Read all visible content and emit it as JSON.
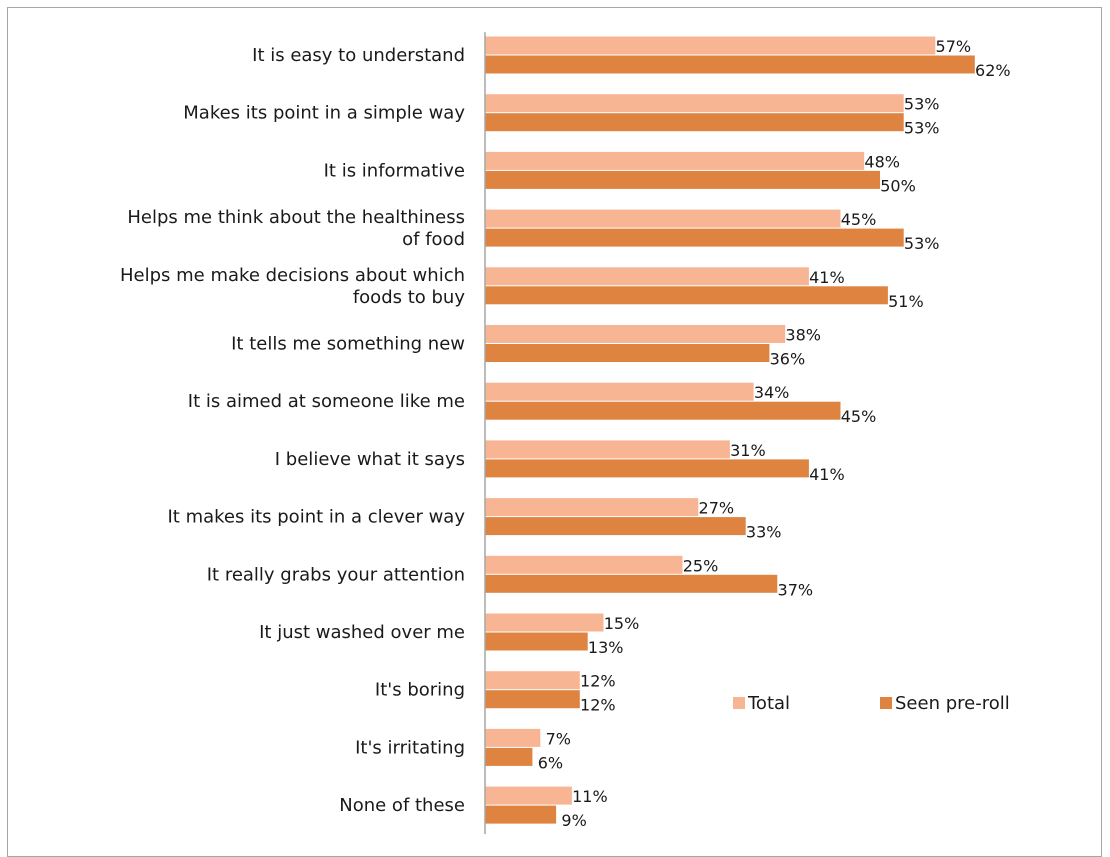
{
  "chart_data": {
    "type": "bar",
    "orientation": "horizontal",
    "categories": [
      "It is easy to understand",
      "Makes its point in a simple way",
      "It is informative",
      "Helps me think about the healthiness of food",
      "Helps me make decisions about which foods to buy",
      "It tells me something new",
      "It is aimed at someone like me",
      "I believe what it says",
      "It makes its point in a clever way",
      "It really grabs your attention",
      "It just washed over me",
      "It's boring",
      "It's irritating",
      "None of these"
    ],
    "series": [
      {
        "name": "Total",
        "color": "#f8b594",
        "values": [
          57,
          53,
          48,
          45,
          41,
          38,
          34,
          31,
          27,
          25,
          15,
          12,
          7,
          11
        ]
      },
      {
        "name": "Seen pre-roll",
        "color": "#de8340",
        "values": [
          62,
          53,
          50,
          53,
          51,
          36,
          45,
          41,
          33,
          37,
          13,
          12,
          6,
          9
        ]
      }
    ],
    "value_suffix": "%",
    "xlim": [
      0,
      100
    ],
    "grid": false,
    "legend_position": "lower-right",
    "title": "",
    "xlabel": "",
    "ylabel": ""
  }
}
